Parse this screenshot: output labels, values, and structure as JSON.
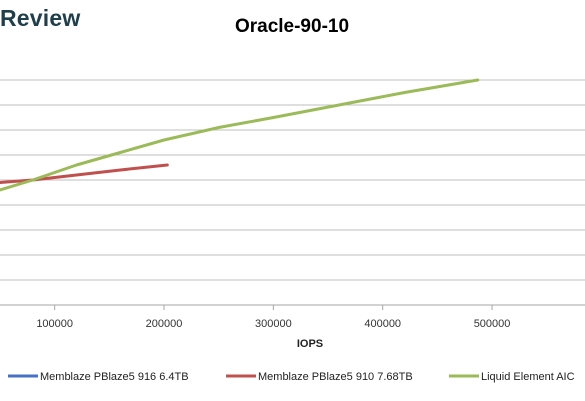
{
  "brand": "Review",
  "chart_data": {
    "type": "line",
    "title": "Oracle-90-10",
    "xlabel": "IOPS",
    "ylabel": "",
    "xlim": [
      50000,
      585000
    ],
    "ylim": [
      0,
      10
    ],
    "x_ticks": [
      100000,
      200000,
      300000,
      400000,
      500000
    ],
    "x_tick_labels": [
      "100000",
      "200000",
      "300000",
      "400000",
      "500000"
    ],
    "y_gridlines": [
      1,
      2,
      3,
      4,
      5,
      6,
      7,
      8,
      9
    ],
    "grid": true,
    "legend_position": "bottom",
    "series": [
      {
        "name": "Memblaze PBlaze5 916 6.4TB",
        "color": "#4472c4",
        "points": []
      },
      {
        "name": "Memblaze PBlaze5 910 7.68TB",
        "color": "#c0504d",
        "points": [
          [
            50000,
            4.9
          ],
          [
            80000,
            5.0
          ],
          [
            120000,
            5.2
          ],
          [
            160000,
            5.4
          ],
          [
            203000,
            5.6
          ]
        ]
      },
      {
        "name": "Liquid Element AIC",
        "color": "#9bbb59",
        "points": [
          [
            50000,
            4.6
          ],
          [
            80000,
            5.0
          ],
          [
            120000,
            5.6
          ],
          [
            160000,
            6.1
          ],
          [
            200000,
            6.6
          ],
          [
            250000,
            7.1
          ],
          [
            300000,
            7.5
          ],
          [
            360000,
            8.0
          ],
          [
            420000,
            8.5
          ],
          [
            487000,
            9.0
          ]
        ]
      }
    ]
  }
}
